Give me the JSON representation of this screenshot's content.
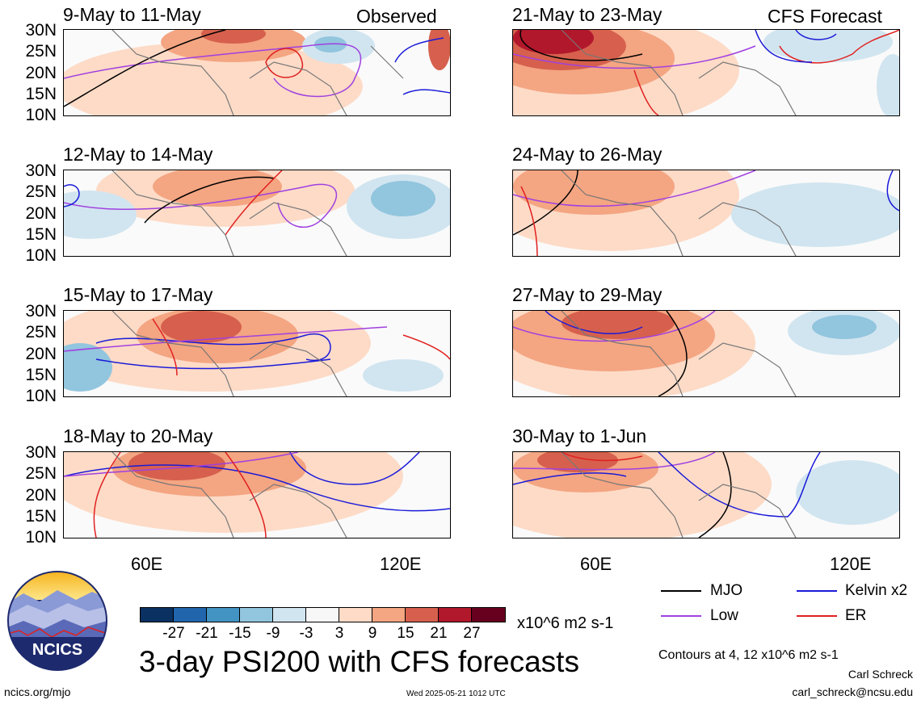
{
  "header": {
    "observed_label": "Observed",
    "forecast_label": "CFS Forecast"
  },
  "panels": [
    {
      "title": "9-May to 11-May"
    },
    {
      "title": "12-May to 14-May"
    },
    {
      "title": "15-May to 17-May"
    },
    {
      "title": "18-May to 20-May"
    },
    {
      "title": "21-May to 23-May"
    },
    {
      "title": "24-May to 26-May"
    },
    {
      "title": "27-May to 29-May"
    },
    {
      "title": "30-May to 1-Jun"
    }
  ],
  "lat_labels": [
    "30N",
    "25N",
    "20N",
    "15N",
    "10N"
  ],
  "lon_labels": [
    "60E",
    "120E"
  ],
  "colorbar": {
    "colors": [
      "#0a3161",
      "#2166ac",
      "#4393c3",
      "#92c5de",
      "#d1e5f0",
      "#f7f7f7",
      "#fddbc7",
      "#f4a582",
      "#d6604d",
      "#b2182b",
      "#67001f"
    ],
    "ticks": [
      "-27",
      "-21",
      "-15",
      "-9",
      "-3",
      "3",
      "9",
      "15",
      "21",
      "27"
    ],
    "units": "x10^6 m2 s-1"
  },
  "legend": {
    "items": [
      {
        "label": "MJO",
        "color": "#000000"
      },
      {
        "label": "Kelvin x2",
        "color": "#1a1ad9"
      },
      {
        "label": "Low",
        "color": "#a040e0"
      },
      {
        "label": "ER",
        "color": "#e02020"
      }
    ],
    "contours_note": "Contours at 4, 12 x10^6 m2 s-1"
  },
  "logo": {
    "text": "NCICS"
  },
  "main_title": "3-day PSI200 with CFS forecasts",
  "footer": {
    "url": "ncics.org/mjo",
    "timestamp": "Wed 2025-05-21 1012 UTC",
    "author": "Carl Schreck",
    "email": "carl_schreck@ncsu.edu"
  }
}
